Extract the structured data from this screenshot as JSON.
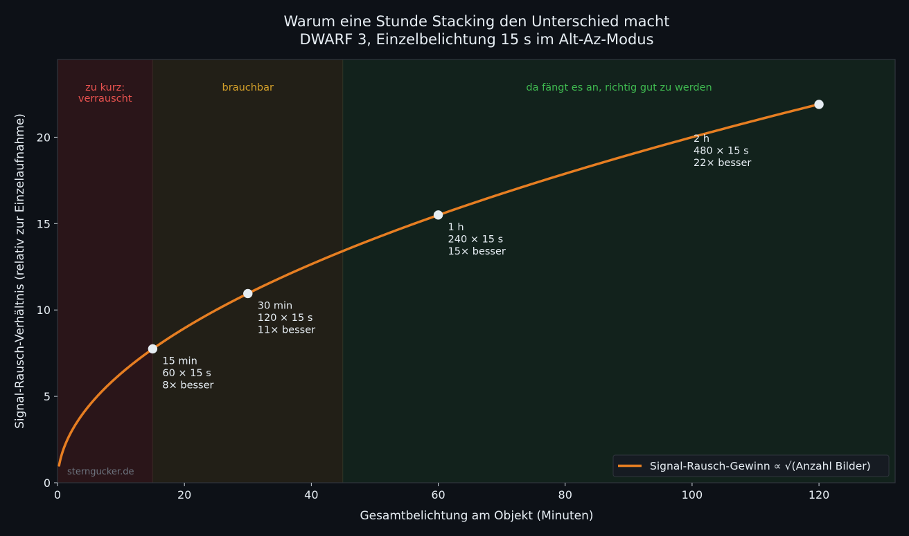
{
  "chart_data": {
    "type": "line",
    "title": "Warum eine Stunde Stacking den Unterschied macht",
    "subtitle": "DWARF 3, Einzelbelichtung 15 s im Alt-Az-Modus",
    "xlabel": "Gesamtbelichtung am Objekt (Minuten)",
    "ylabel": "Signal-Rausch-Verhältnis (relativ zur Einzelaufnahme)",
    "xlim": [
      0,
      132
    ],
    "ylim": [
      0,
      24.5
    ],
    "xticks": [
      0,
      20,
      40,
      60,
      80,
      100,
      120
    ],
    "yticks": [
      0,
      5,
      10,
      15,
      20
    ],
    "grid": false,
    "legend_position": "bottom-right",
    "series": [
      {
        "name": "Signal-Rausch-Gewinn ∝ √(Anzahl Bilder)",
        "formula": "sqrt(x * 4)",
        "x_range": [
          0.25,
          120
        ],
        "color": "#e67e22"
      }
    ],
    "regions": [
      {
        "x0": 0,
        "x1": 15,
        "label": "zu kurz:\nverrauscht",
        "fill": "#2a1519",
        "text_color": "#e8524f"
      },
      {
        "x0": 15,
        "x1": 45,
        "label": "brauchbar",
        "fill": "#221f17",
        "text_color": "#d4a02a"
      },
      {
        "x0": 45,
        "x1": 132,
        "label": "da fängt es an, richtig gut zu werden",
        "fill": "#12221c",
        "text_color": "#3fb950"
      }
    ],
    "markers": [
      {
        "x": 15,
        "y": 7.75,
        "label": "15 min\n60 × 15 s\n8× besser"
      },
      {
        "x": 30,
        "y": 10.95,
        "label": "30 min\n120 × 15 s\n11× besser"
      },
      {
        "x": 60,
        "y": 15.5,
        "label": "1 h\n240 × 15 s\n15× besser"
      },
      {
        "x": 120,
        "y": 21.9,
        "label": "2 h\n480 × 15 s\n22× besser"
      }
    ],
    "watermark": "sterngucker.de"
  }
}
